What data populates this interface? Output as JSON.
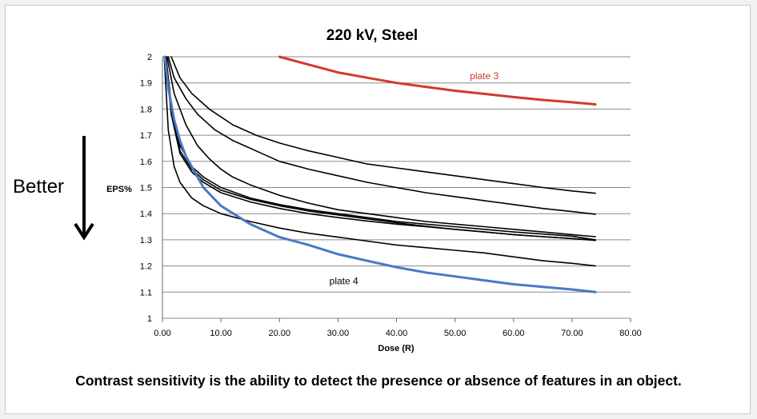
{
  "chart_data": {
    "type": "line",
    "title": "220 kV, Steel",
    "xlabel": "Dose (R)",
    "ylabel": "EPS%",
    "xlim": [
      0,
      80
    ],
    "ylim": [
      1,
      2
    ],
    "x_ticks": [
      "0.00",
      "10.00",
      "20.00",
      "30.00",
      "40.00",
      "50.00",
      "60.00",
      "70.00",
      "80.00"
    ],
    "y_ticks": [
      "1",
      "1.1",
      "1.2",
      "1.3",
      "1.4",
      "1.5",
      "1.6",
      "1.7",
      "1.8",
      "1.9",
      "2"
    ],
    "grid": true,
    "series": [
      {
        "name": "plate 3",
        "color": "#d23a2a",
        "points": [
          [
            20,
            2.01
          ],
          [
            25,
            1.97
          ],
          [
            30,
            1.94
          ],
          [
            35,
            1.92
          ],
          [
            40,
            1.9
          ],
          [
            45,
            1.885
          ],
          [
            50,
            1.87
          ],
          [
            55,
            1.858
          ],
          [
            60,
            1.846
          ],
          [
            65,
            1.835
          ],
          [
            70,
            1.826
          ],
          [
            74,
            1.818
          ]
        ]
      },
      {
        "name": "plate 4",
        "color": "#4a78c8",
        "points": [
          [
            0.4,
            2.0
          ],
          [
            1,
            1.88
          ],
          [
            2,
            1.76
          ],
          [
            3,
            1.68
          ],
          [
            4,
            1.62
          ],
          [
            5,
            1.58
          ],
          [
            7,
            1.5
          ],
          [
            10,
            1.43
          ],
          [
            15,
            1.36
          ],
          [
            20,
            1.31
          ],
          [
            25,
            1.28
          ],
          [
            30,
            1.245
          ],
          [
            35,
            1.22
          ],
          [
            40,
            1.195
          ],
          [
            45,
            1.175
          ],
          [
            50,
            1.16
          ],
          [
            55,
            1.145
          ],
          [
            60,
            1.13
          ],
          [
            65,
            1.12
          ],
          [
            70,
            1.11
          ],
          [
            74,
            1.1
          ]
        ]
      },
      {
        "name": "",
        "color": "#000000",
        "points": [
          [
            1.5,
            2.0
          ],
          [
            3,
            1.92
          ],
          [
            5,
            1.86
          ],
          [
            8,
            1.8
          ],
          [
            12,
            1.74
          ],
          [
            16,
            1.7
          ],
          [
            20,
            1.67
          ],
          [
            25,
            1.64
          ],
          [
            30,
            1.615
          ],
          [
            35,
            1.59
          ],
          [
            40,
            1.575
          ],
          [
            45,
            1.56
          ],
          [
            50,
            1.545
          ],
          [
            55,
            1.53
          ],
          [
            60,
            1.515
          ],
          [
            65,
            1.5
          ],
          [
            70,
            1.487
          ],
          [
            74,
            1.478
          ]
        ]
      },
      {
        "name": "",
        "color": "#000000",
        "points": [
          [
            1,
            2.0
          ],
          [
            2,
            1.92
          ],
          [
            4,
            1.84
          ],
          [
            6,
            1.78
          ],
          [
            9,
            1.72
          ],
          [
            12,
            1.68
          ],
          [
            16,
            1.64
          ],
          [
            20,
            1.6
          ],
          [
            25,
            1.57
          ],
          [
            30,
            1.545
          ],
          [
            35,
            1.52
          ],
          [
            40,
            1.5
          ],
          [
            45,
            1.48
          ],
          [
            50,
            1.465
          ],
          [
            55,
            1.45
          ],
          [
            60,
            1.435
          ],
          [
            65,
            1.42
          ],
          [
            70,
            1.408
          ],
          [
            74,
            1.398
          ]
        ]
      },
      {
        "name": "",
        "color": "#000000",
        "points": [
          [
            0.8,
            2.0
          ],
          [
            2,
            1.86
          ],
          [
            4,
            1.74
          ],
          [
            6,
            1.66
          ],
          [
            8,
            1.61
          ],
          [
            10,
            1.57
          ],
          [
            12,
            1.54
          ],
          [
            15,
            1.51
          ],
          [
            20,
            1.47
          ],
          [
            25,
            1.44
          ],
          [
            30,
            1.415
          ],
          [
            35,
            1.4
          ],
          [
            40,
            1.385
          ],
          [
            45,
            1.37
          ],
          [
            50,
            1.36
          ],
          [
            55,
            1.35
          ],
          [
            60,
            1.34
          ],
          [
            65,
            1.33
          ],
          [
            70,
            1.32
          ],
          [
            74,
            1.312
          ]
        ]
      },
      {
        "name": "",
        "color": "#000000",
        "points": [
          [
            0.6,
            2.0
          ],
          [
            1.5,
            1.82
          ],
          [
            3,
            1.66
          ],
          [
            5,
            1.58
          ],
          [
            7,
            1.54
          ],
          [
            10,
            1.5
          ],
          [
            15,
            1.46
          ],
          [
            20,
            1.435
          ],
          [
            25,
            1.415
          ],
          [
            30,
            1.4
          ],
          [
            35,
            1.385
          ],
          [
            40,
            1.37
          ],
          [
            45,
            1.36
          ],
          [
            50,
            1.35
          ],
          [
            55,
            1.34
          ],
          [
            60,
            1.33
          ],
          [
            65,
            1.322
          ],
          [
            70,
            1.314
          ],
          [
            74,
            1.3
          ]
        ]
      },
      {
        "name": "",
        "color": "#000000",
        "points": [
          [
            0.6,
            2.0
          ],
          [
            1.5,
            1.8
          ],
          [
            3,
            1.64
          ],
          [
            5,
            1.57
          ],
          [
            7,
            1.53
          ],
          [
            10,
            1.49
          ],
          [
            15,
            1.455
          ],
          [
            20,
            1.43
          ],
          [
            25,
            1.41
          ],
          [
            30,
            1.395
          ],
          [
            35,
            1.38
          ],
          [
            40,
            1.365
          ],
          [
            45,
            1.352
          ],
          [
            50,
            1.34
          ],
          [
            55,
            1.33
          ],
          [
            60,
            1.32
          ],
          [
            65,
            1.312
          ],
          [
            70,
            1.305
          ],
          [
            74,
            1.298
          ]
        ]
      },
      {
        "name": "",
        "color": "#000000",
        "points": [
          [
            0.5,
            2.0
          ],
          [
            1.5,
            1.78
          ],
          [
            3,
            1.63
          ],
          [
            5,
            1.56
          ],
          [
            7,
            1.52
          ],
          [
            10,
            1.48
          ],
          [
            15,
            1.445
          ],
          [
            20,
            1.42
          ],
          [
            25,
            1.4
          ],
          [
            30,
            1.385
          ],
          [
            35,
            1.372
          ],
          [
            40,
            1.36
          ],
          [
            45,
            1.35
          ],
          [
            50,
            1.34
          ],
          [
            55,
            1.33
          ],
          [
            60,
            1.32
          ],
          [
            65,
            1.312
          ],
          [
            70,
            1.305
          ],
          [
            74,
            1.298
          ]
        ]
      },
      {
        "name": "",
        "color": "#000000",
        "points": [
          [
            0.3,
            2.0
          ],
          [
            1,
            1.72
          ],
          [
            2,
            1.58
          ],
          [
            3,
            1.52
          ],
          [
            5,
            1.46
          ],
          [
            7,
            1.43
          ],
          [
            10,
            1.4
          ],
          [
            15,
            1.37
          ],
          [
            20,
            1.345
          ],
          [
            25,
            1.325
          ],
          [
            30,
            1.31
          ],
          [
            35,
            1.295
          ],
          [
            40,
            1.28
          ],
          [
            45,
            1.27
          ],
          [
            50,
            1.26
          ],
          [
            55,
            1.25
          ],
          [
            60,
            1.235
          ],
          [
            65,
            1.22
          ],
          [
            70,
            1.21
          ],
          [
            74,
            1.2
          ]
        ]
      }
    ],
    "annotations": [
      {
        "text": "plate 3",
        "x": 55,
        "y": 1.915,
        "color": "#d23a2a"
      },
      {
        "text": "plate 4",
        "x": 31,
        "y": 1.13,
        "color": "#000000"
      }
    ]
  },
  "side_label": "Better",
  "caption": "Contrast sensitivity is the ability to detect the presence or absence of features in an object."
}
